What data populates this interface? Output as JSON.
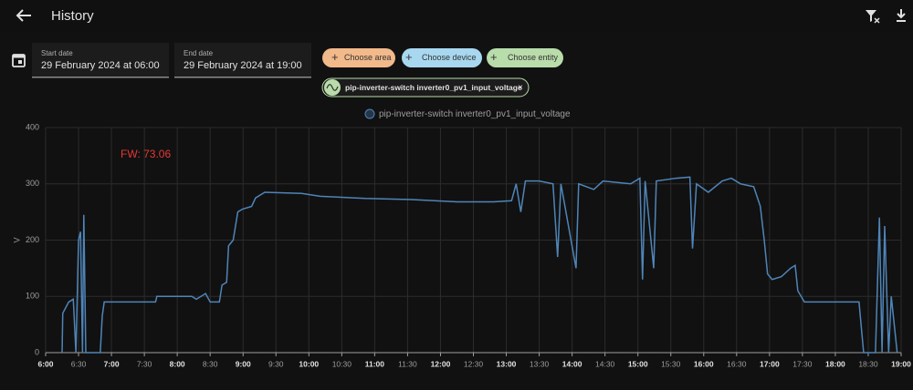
{
  "header": {
    "title": "History"
  },
  "date_range": {
    "start_label": "Start date",
    "start_value": "29 February 2024 at 06:00",
    "end_label": "End date",
    "end_value": "29 February 2024 at 19:00"
  },
  "pickers": [
    "Choose area",
    "Choose device",
    "Choose entity"
  ],
  "selected_entities": [
    "pip-inverter-switch inverter0_pv1_input_voltage"
  ],
  "chart_data": {
    "type": "line",
    "ylabel": "V",
    "annotation": "FW: 73.06",
    "grid": true,
    "xlim": [
      6,
      19
    ],
    "xticks": [
      {
        "value": 6,
        "label": "6:00"
      },
      {
        "value": 6.5,
        "label": "6:30"
      },
      {
        "value": 7,
        "label": "7:00"
      },
      {
        "value": 7.5,
        "label": "7:30"
      },
      {
        "value": 8,
        "label": "8:00"
      },
      {
        "value": 8.5,
        "label": "8:30"
      },
      {
        "value": 9,
        "label": "9:00"
      },
      {
        "value": 9.5,
        "label": "9:30"
      },
      {
        "value": 10,
        "label": "10:00"
      },
      {
        "value": 10.5,
        "label": "10:30"
      },
      {
        "value": 11,
        "label": "11:00"
      },
      {
        "value": 11.5,
        "label": "11:30"
      },
      {
        "value": 12,
        "label": "12:00"
      },
      {
        "value": 12.5,
        "label": "12:30"
      },
      {
        "value": 13,
        "label": "13:00"
      },
      {
        "value": 13.5,
        "label": "13:30"
      },
      {
        "value": 14,
        "label": "14:00"
      },
      {
        "value": 14.5,
        "label": "14:30"
      },
      {
        "value": 15,
        "label": "15:00"
      },
      {
        "value": 15.5,
        "label": "15:30"
      },
      {
        "value": 16,
        "label": "16:00"
      },
      {
        "value": 16.5,
        "label": "16:30"
      },
      {
        "value": 17,
        "label": "17:00"
      },
      {
        "value": 17.5,
        "label": "17:30"
      },
      {
        "value": 18,
        "label": "18:00"
      },
      {
        "value": 18.5,
        "label": "18:30"
      },
      {
        "value": 19,
        "label": "19:00"
      }
    ],
    "ylim": [
      0,
      400
    ],
    "yticks": [
      0,
      100,
      200,
      300,
      400
    ],
    "x": [
      6.25,
      6.26,
      6.35,
      6.42,
      6.46,
      6.5,
      6.53,
      6.56,
      6.58,
      6.61,
      6.83,
      6.86,
      6.89,
      7.67,
      7.69,
      8.22,
      8.29,
      8.43,
      8.5,
      8.64,
      8.68,
      8.75,
      8.78,
      8.85,
      8.92,
      8.99,
      9.13,
      9.19,
      9.33,
      9.89,
      10.17,
      10.86,
      11.56,
      12.25,
      12.81,
      13.08,
      13.15,
      13.22,
      13.29,
      13.5,
      13.71,
      13.78,
      13.83,
      14.06,
      14.1,
      14.33,
      14.47,
      14.89,
      15.03,
      15.07,
      15.11,
      15.24,
      15.28,
      15.58,
      15.79,
      15.83,
      15.89,
      16.07,
      16.28,
      16.42,
      16.56,
      16.76,
      16.86,
      16.92,
      16.97,
      17.04,
      17.18,
      17.32,
      17.39,
      17.43,
      17.53,
      18.36,
      18.43,
      18.61,
      18.67,
      18.71,
      18.75,
      18.81,
      18.85,
      18.94
    ],
    "series": [
      {
        "name": "pip-inverter-switch inverter0_pv1_input_voltage",
        "color": "#4f85b8",
        "values": [
          0,
          70,
          90,
          95,
          0,
          200,
          215,
          0,
          245,
          0,
          0,
          65,
          90,
          90,
          100,
          100,
          95,
          105,
          90,
          90,
          120,
          125,
          190,
          200,
          250,
          255,
          260,
          275,
          285,
          283,
          278,
          274,
          272,
          268,
          268,
          270,
          300,
          250,
          305,
          305,
          300,
          170,
          300,
          150,
          300,
          290,
          305,
          300,
          310,
          130,
          305,
          150,
          305,
          310,
          312,
          185,
          300,
          285,
          305,
          310,
          300,
          295,
          260,
          200,
          140,
          130,
          135,
          150,
          155,
          110,
          90,
          90,
          0,
          0,
          240,
          0,
          225,
          0,
          100,
          0
        ]
      }
    ]
  }
}
